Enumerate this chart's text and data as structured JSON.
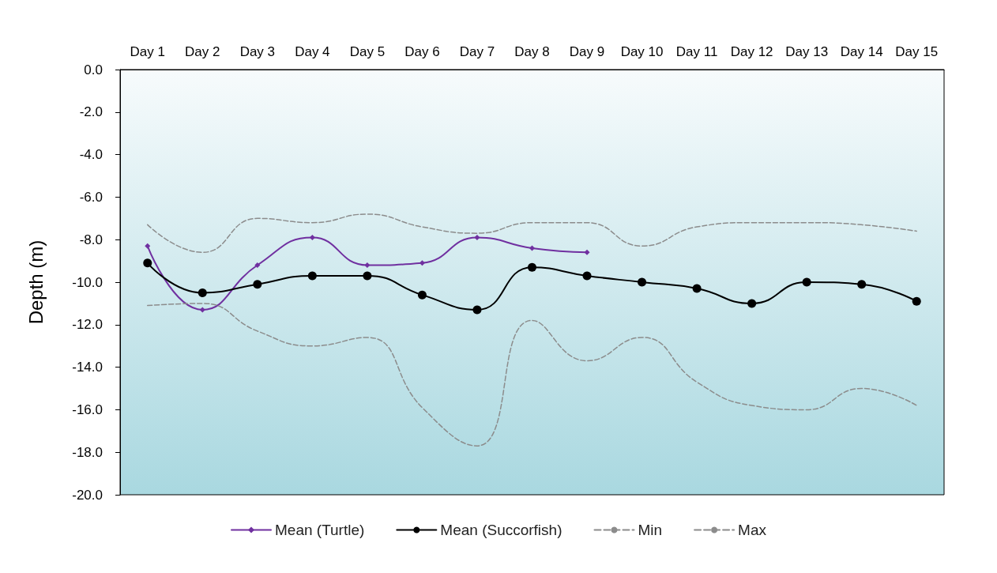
{
  "chart_data": {
    "type": "line",
    "ylabel": "Depth (m)",
    "categories": [
      "Day 1",
      "Day 2",
      "Day 3",
      "Day 4",
      "Day 5",
      "Day 6",
      "Day 7",
      "Day 8",
      "Day 9",
      "Day 10",
      "Day 11",
      "Day 12",
      "Day 13",
      "Day 14",
      "Day 15"
    ],
    "series": [
      {
        "name": "Mean (Turtle)",
        "color": "#7030a0",
        "marker": "diamond",
        "line_style": "solid",
        "values": [
          -8.3,
          -11.3,
          -9.2,
          -7.9,
          -9.2,
          -9.1,
          -7.9,
          -8.4,
          -8.6,
          null,
          null,
          null,
          null,
          null,
          null
        ]
      },
      {
        "name": "Mean (Succorfish)",
        "color": "#000000",
        "marker": "circle",
        "line_style": "solid",
        "values": [
          -9.1,
          -10.5,
          -10.1,
          -9.7,
          -9.7,
          -10.6,
          -11.3,
          -9.3,
          -9.7,
          -10.0,
          -10.3,
          -11.0,
          -10.0,
          -10.1,
          -10.9
        ]
      },
      {
        "name": "Min",
        "color": "#8c8c8c",
        "marker": "none",
        "line_style": "dashed",
        "values": [
          -7.3,
          -8.6,
          -7.0,
          -7.2,
          -6.8,
          -7.4,
          -7.7,
          -7.2,
          -7.2,
          -8.3,
          -7.4,
          -7.2,
          -7.2,
          -7.3,
          -7.6
        ]
      },
      {
        "name": "Max",
        "color": "#8c8c8c",
        "marker": "none",
        "line_style": "dashed",
        "values": [
          -11.1,
          -11.0,
          -12.3,
          -13.0,
          -12.6,
          -15.9,
          -17.7,
          -11.8,
          -13.7,
          -12.6,
          -14.7,
          -15.8,
          -16.0,
          -15.0,
          -15.8
        ]
      }
    ],
    "ylim": [
      -20,
      0
    ],
    "yticks": [
      {
        "value": -20,
        "label": "-20.0"
      },
      {
        "value": -18,
        "label": "-18.0"
      },
      {
        "value": -16,
        "label": "-16.0"
      },
      {
        "value": -14,
        "label": "-14.0"
      },
      {
        "value": -12,
        "label": "-12.0"
      },
      {
        "value": -10,
        "label": "-10.0"
      },
      {
        "value": -8,
        "label": "-8.0"
      },
      {
        "value": -6,
        "label": "-6.0"
      },
      {
        "value": -4,
        "label": "-4.0"
      },
      {
        "value": -2,
        "label": "-2.0"
      },
      {
        "value": 0,
        "label": "0.0"
      }
    ],
    "grid": false,
    "legend": "bottom"
  }
}
